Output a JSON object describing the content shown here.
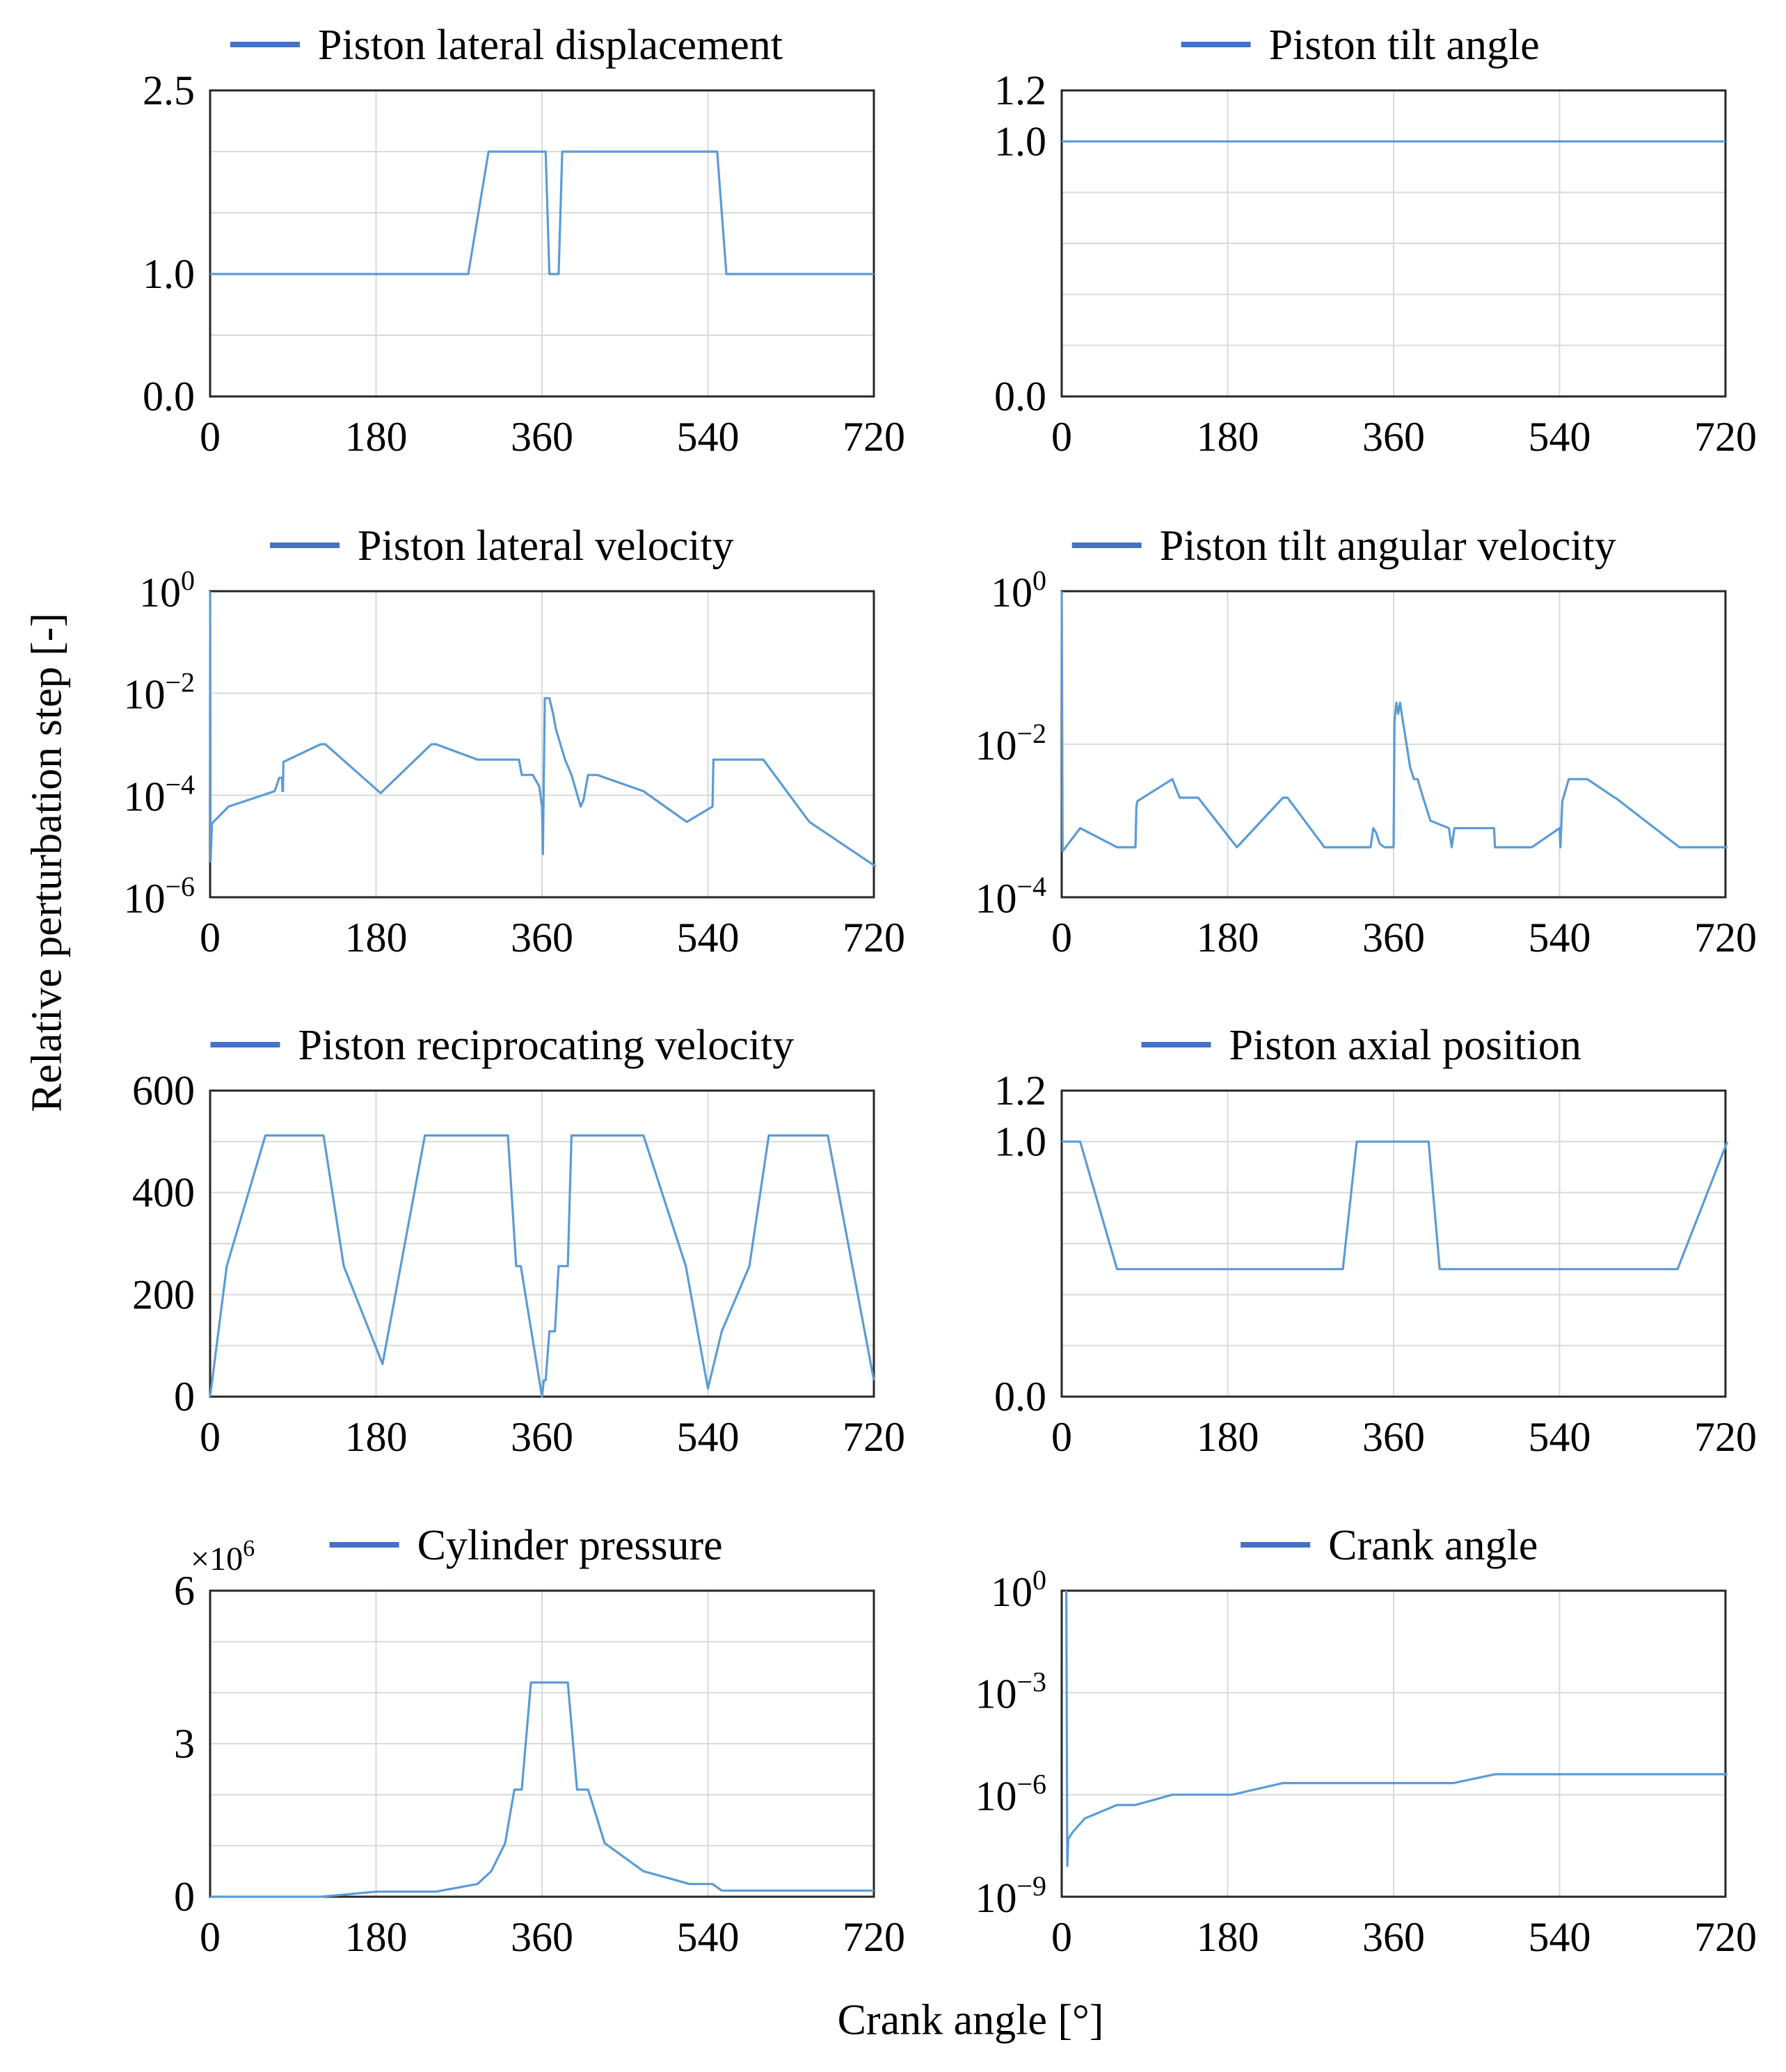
{
  "figure": {
    "ylabel": "Relative perturbation step [-]",
    "xlabel": "Crank angle [°]",
    "line_color": "#5b9bd5",
    "legend_color": "#4472c4",
    "grid_color": "#d9d9d9"
  },
  "chart_data": [
    {
      "type": "line",
      "title": "Piston lateral displacement",
      "legend": "Piston lateral displacement",
      "scale": "linear",
      "ylim": [
        0,
        2.5
      ],
      "yticks": [
        {
          "v": 0,
          "label": "0.0"
        },
        {
          "v": 1.0,
          "label": "1.0"
        },
        {
          "v": 2.5,
          "label": "2.5"
        }
      ],
      "ygrid": [
        0.5,
        1.0,
        1.5,
        2.0,
        2.5
      ],
      "xlim": [
        0,
        720
      ],
      "xticks": [
        0,
        180,
        360,
        540,
        720
      ],
      "x": [
        0,
        280,
        302,
        364,
        368,
        378,
        382,
        550,
        560,
        720
      ],
      "y": [
        1.0,
        1.0,
        2.0,
        2.0,
        1.0,
        1.0,
        2.0,
        2.0,
        1.0,
        1.0
      ]
    },
    {
      "type": "line",
      "title": "Piston tilt angle",
      "legend": "Piston tilt angle",
      "scale": "linear",
      "ylim": [
        0,
        1.2
      ],
      "yticks": [
        {
          "v": 0,
          "label": "0.0"
        },
        {
          "v": 1.0,
          "label": "1.0"
        },
        {
          "v": 1.2,
          "label": "1.2"
        }
      ],
      "ygrid": [
        0.2,
        0.4,
        0.6,
        0.8,
        1.0,
        1.2
      ],
      "xlim": [
        0,
        720
      ],
      "xticks": [
        0,
        180,
        360,
        540,
        720
      ],
      "x": [
        0,
        720
      ],
      "y": [
        1.0,
        1.0
      ]
    },
    {
      "type": "line",
      "title": "Piston lateral velocity",
      "legend": "Piston lateral velocity",
      "scale": "log",
      "ylim": [
        1e-06,
        1
      ],
      "yticks": [
        {
          "v": 1e-06,
          "base": "10",
          "exp": "−6"
        },
        {
          "v": 0.0001,
          "base": "10",
          "exp": "−4"
        },
        {
          "v": 0.01,
          "base": "10",
          "exp": "−2"
        },
        {
          "v": 1,
          "base": "10",
          "exp": "0"
        }
      ],
      "ygrid": [
        0.0001,
        0.01,
        1
      ],
      "xlim": [
        0,
        720
      ],
      "xticks": [
        0,
        180,
        360,
        540,
        720
      ],
      "x": [
        0,
        0.5,
        2,
        20,
        70,
        75,
        78,
        78.5,
        79,
        79.5,
        120,
        125,
        185,
        240,
        245,
        290,
        335,
        338,
        350,
        357,
        360,
        361,
        363,
        368,
        372,
        375,
        385,
        392,
        402,
        405,
        410,
        420,
        470,
        517,
        545,
        546,
        600,
        650,
        722
      ],
      "y": [
        1,
        5e-06,
        2.8e-05,
        6e-05,
        0.00012,
        0.00022,
        0.00022,
        0.00012,
        0.00012,
        0.00045,
        0.001,
        0.001,
        0.00011,
        0.001,
        0.001,
        0.0005,
        0.0005,
        0.00025,
        0.00025,
        0.00015,
        6e-05,
        7e-06,
        0.008,
        0.008,
        0.004,
        0.002,
        0.0005,
        0.00025,
        6e-05,
        8e-05,
        0.00025,
        0.00025,
        0.00012,
        3e-05,
        6e-05,
        0.0005,
        0.0005,
        3e-05,
        4e-06
      ]
    },
    {
      "type": "line",
      "title": "Piston tilt angular velocity",
      "legend": "Piston tilt angular velocity",
      "scale": "log",
      "ylim": [
        0.0001,
        1
      ],
      "yticks": [
        {
          "v": 0.0001,
          "base": "10",
          "exp": "−4"
        },
        {
          "v": 0.01,
          "base": "10",
          "exp": "−2"
        },
        {
          "v": 1,
          "base": "10",
          "exp": "0"
        }
      ],
      "ygrid": [
        0.01,
        1
      ],
      "xlim": [
        0,
        720
      ],
      "xticks": [
        0,
        180,
        360,
        540,
        720
      ],
      "x": [
        0,
        1,
        20,
        60,
        80,
        81,
        82,
        120,
        128,
        148,
        190,
        240,
        245,
        285,
        335,
        338,
        341,
        345,
        350,
        357,
        360,
        361,
        363,
        365,
        367,
        370,
        374,
        378,
        382,
        386,
        392,
        400,
        420,
        423,
        426,
        428,
        430,
        469,
        470,
        510,
        540,
        541,
        543,
        550,
        570,
        600,
        600.5,
        670,
        722
      ],
      "y": [
        1,
        0.0004,
        0.0008,
        0.00045,
        0.00045,
        0.0015,
        0.0018,
        0.0035,
        0.002,
        0.002,
        0.00045,
        0.002,
        0.002,
        0.00045,
        0.00045,
        0.0008,
        0.0007,
        0.0005,
        0.00045,
        0.00045,
        0.00045,
        0.02,
        0.035,
        0.025,
        0.035,
        0.02,
        0.01,
        0.005,
        0.0035,
        0.0035,
        0.002,
        0.001,
        0.0008,
        0.00045,
        0.0008,
        0.0008,
        0.0008,
        0.0008,
        0.00045,
        0.00045,
        0.0008,
        0.00045,
        0.0018,
        0.0035,
        0.0035,
        0.002,
        0.002,
        0.00045,
        0.00045
      ]
    },
    {
      "type": "line",
      "title": "Piston reciprocating velocity",
      "legend": "Piston reciprocating velocity",
      "scale": "linear",
      "ylim": [
        0,
        600
      ],
      "yticks": [
        {
          "v": 0,
          "label": "0"
        },
        {
          "v": 200,
          "label": "200"
        },
        {
          "v": 400,
          "label": "400"
        },
        {
          "v": 600,
          "label": "600"
        }
      ],
      "ygrid": [
        100,
        200,
        300,
        400,
        500,
        600
      ],
      "xlim": [
        0,
        720
      ],
      "xticks": [
        0,
        180,
        360,
        540,
        720
      ],
      "x": [
        0,
        18,
        60,
        123,
        145,
        187,
        233,
        323,
        332,
        337,
        360,
        362,
        364,
        368,
        371,
        374,
        378,
        381,
        385,
        388,
        392,
        396,
        412,
        470,
        516,
        540,
        555,
        585,
        606,
        670,
        720
      ],
      "y": [
        0,
        256,
        512,
        512,
        256,
        64,
        512,
        512,
        256,
        256,
        0,
        32,
        32,
        128,
        128,
        128,
        256,
        256,
        256,
        256,
        512,
        512,
        512,
        512,
        256,
        16,
        128,
        256,
        512,
        512,
        32
      ]
    },
    {
      "type": "line",
      "title": "Piston axial position",
      "legend": "Piston axial position",
      "scale": "linear",
      "ylim": [
        0,
        1.2
      ],
      "yticks": [
        {
          "v": 0,
          "label": "0.0"
        },
        {
          "v": 1.0,
          "label": "1.0"
        },
        {
          "v": 1.2,
          "label": "1.2"
        }
      ],
      "ygrid": [
        0.2,
        0.4,
        0.6,
        0.8,
        1.0,
        1.2
      ],
      "xlim": [
        0,
        720
      ],
      "xticks": [
        0,
        180,
        360,
        540,
        720
      ],
      "x": [
        0,
        20,
        60,
        305,
        320,
        398,
        410,
        668,
        722
      ],
      "y": [
        1.0,
        1.0,
        0.5,
        0.5,
        1.0,
        1.0,
        0.5,
        0.5,
        1.0
      ]
    },
    {
      "type": "line",
      "title": "Cylinder pressure",
      "legend": "Cylinder pressure",
      "scale": "linear",
      "multiplier_base": "×10",
      "multiplier_exp": "6",
      "ylim": [
        0,
        6
      ],
      "yticks": [
        {
          "v": 0,
          "label": "0"
        },
        {
          "v": 3,
          "label": "3"
        },
        {
          "v": 6,
          "label": "6"
        }
      ],
      "ygrid": [
        1,
        2,
        3,
        4,
        5,
        6
      ],
      "xlim": [
        0,
        720
      ],
      "xticks": [
        0,
        180,
        360,
        540,
        720
      ],
      "x": [
        0,
        120,
        180,
        245,
        290,
        305,
        320,
        330,
        334,
        338,
        348,
        388,
        398,
        402,
        410,
        428,
        470,
        520,
        545,
        555,
        720
      ],
      "y": [
        0,
        0,
        0.1,
        0.1,
        0.25,
        0.5,
        1.05,
        2.1,
        2.1,
        2.1,
        4.2,
        4.2,
        2.1,
        2.1,
        2.1,
        1.05,
        0.5,
        0.25,
        0.25,
        0.12,
        0.12
      ]
    },
    {
      "type": "line",
      "title": "Crank angle",
      "legend": "Crank angle",
      "scale": "log",
      "ylim": [
        1e-09,
        1
      ],
      "yticks": [
        {
          "v": 1e-09,
          "base": "10",
          "exp": "−9"
        },
        {
          "v": 1e-06,
          "base": "10",
          "exp": "−6"
        },
        {
          "v": 0.001,
          "base": "10",
          "exp": "−3"
        },
        {
          "v": 1,
          "base": "10",
          "exp": "0"
        }
      ],
      "ygrid": [
        1e-06,
        0.001,
        1
      ],
      "xlim": [
        0,
        720
      ],
      "xticks": [
        0,
        180,
        360,
        540,
        720
      ],
      "x": [
        5,
        6,
        7,
        12,
        25,
        60,
        80,
        120,
        185,
        240,
        280,
        425,
        470,
        722
      ],
      "y": [
        1,
        8e-09,
        5e-08,
        8e-08,
        2e-07,
        5e-07,
        5e-07,
        1e-06,
        1e-06,
        2.2e-06,
        2.2e-06,
        2.2e-06,
        4e-06,
        4e-06
      ]
    }
  ]
}
